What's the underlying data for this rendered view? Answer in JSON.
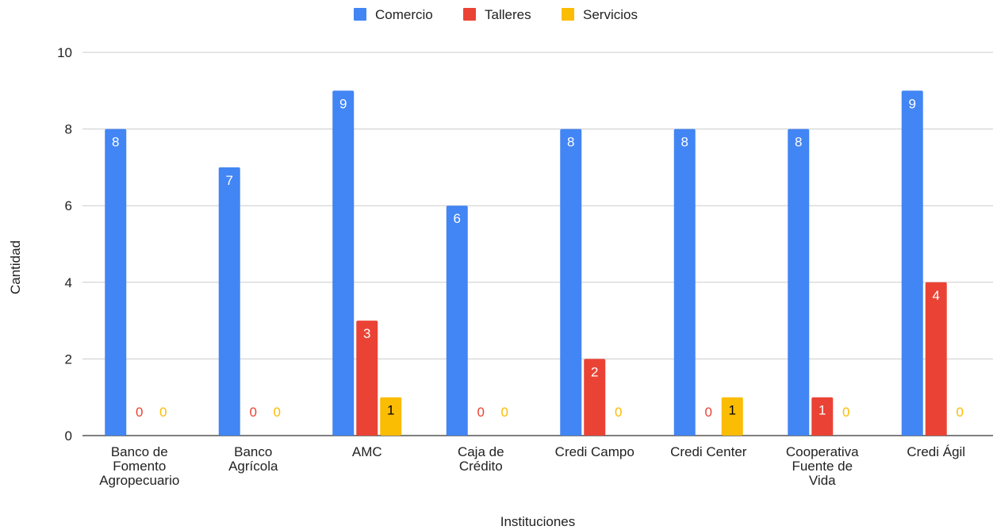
{
  "chart_data": {
    "type": "bar",
    "xlabel": "Instituciones",
    "ylabel": "Cantidad",
    "ylim": [
      0,
      10
    ],
    "yticks": [
      0,
      2,
      4,
      6,
      8,
      10
    ],
    "grid": true,
    "legend_position": "top-center",
    "categories": [
      [
        "Banco de",
        "Fomento",
        "Agropecuario"
      ],
      [
        "Banco",
        "Agrícola"
      ],
      [
        "AMC"
      ],
      [
        "Caja de",
        "Crédito"
      ],
      [
        "Credi Campo"
      ],
      [
        "Credi Center"
      ],
      [
        "Cooperativa",
        "Fuente de",
        "Vida"
      ],
      [
        "Credi Ágil"
      ]
    ],
    "series": [
      {
        "name": "Comercio",
        "color": "#4285F4",
        "label_color": "#ffffff",
        "values": [
          8,
          7,
          9,
          6,
          8,
          8,
          8,
          9
        ]
      },
      {
        "name": "Talleres",
        "color": "#EA4335",
        "label_color": "#ffffff",
        "values": [
          0,
          0,
          3,
          0,
          2,
          0,
          1,
          4
        ]
      },
      {
        "name": "Servicios",
        "color": "#FBBC04",
        "label_color": "#000000",
        "values": [
          0,
          0,
          1,
          0,
          0,
          1,
          0,
          0
        ]
      }
    ]
  }
}
